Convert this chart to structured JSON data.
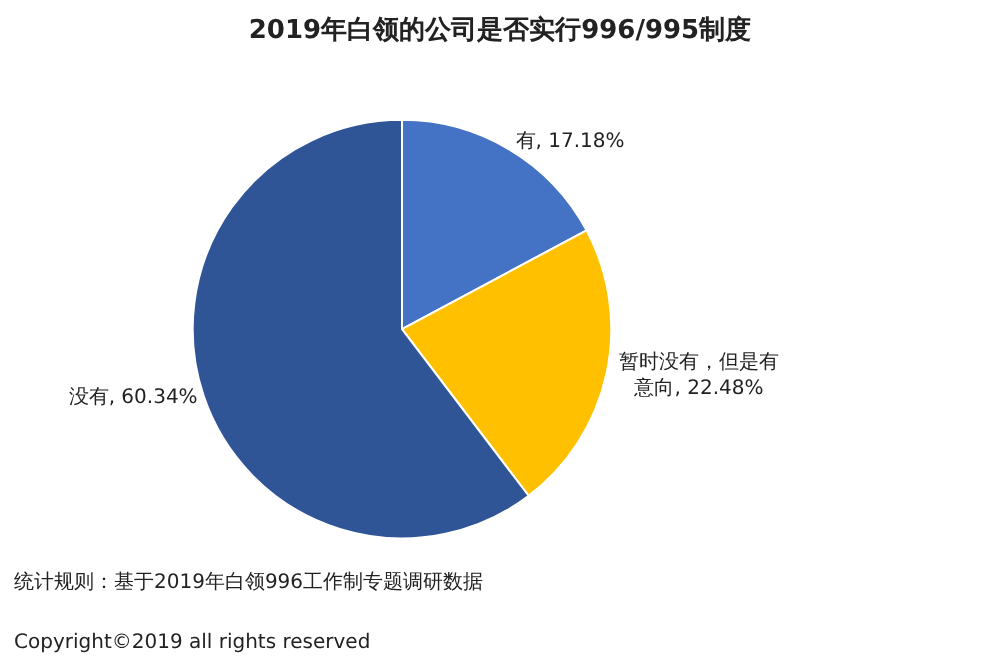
{
  "chart_data": {
    "type": "pie",
    "title": "2019年白领的公司是否实行996/995制度",
    "categories": [
      "有",
      "暂时没有，但是有意向",
      "没有"
    ],
    "values": [
      17.18,
      22.48,
      60.34
    ],
    "value_labels": [
      "17.18%",
      "22.48%",
      "60.34%"
    ],
    "colors": [
      "#4472c4",
      "#ffc000",
      "#2f5597"
    ],
    "annotations": [
      "统计规则：基于2019年白领996工作制专题调研数据",
      "Copyright©2019 all rights reserved"
    ]
  }
}
